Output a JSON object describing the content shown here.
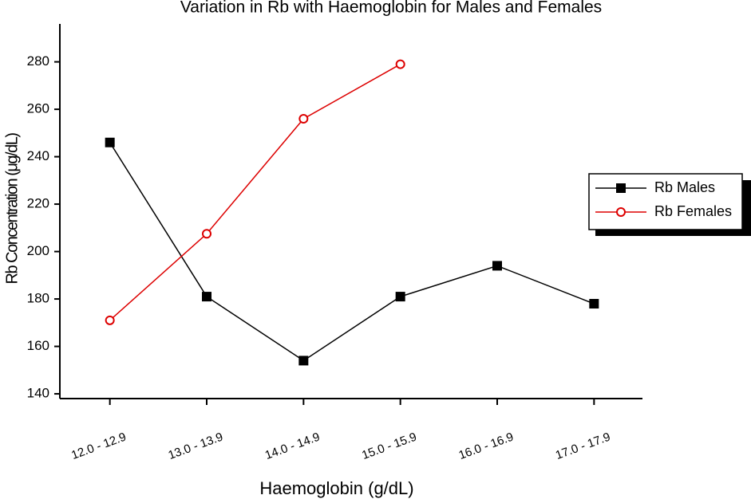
{
  "chart_data": {
    "type": "line",
    "title": "Variation in Rb with Haemoglobin for Males and Females",
    "x_label": "Haemoglobin (g/dL)",
    "y_label": "Rb Concentration (μg/dL)",
    "categories": [
      "12.0 - 12.9",
      "13.0 - 13.9",
      "14.0 - 14.9",
      "15.0 - 15.9",
      "16.0 - 16.9",
      "17.0 - 17.9"
    ],
    "series": [
      {
        "name": "Rb Males",
        "color": "#000000",
        "marker": "square",
        "values": [
          246,
          181,
          154,
          181,
          194,
          178
        ]
      },
      {
        "name": "Rb Females",
        "color": "#dd0000",
        "marker": "circle",
        "values": [
          171,
          207.5,
          256,
          279,
          null,
          null
        ]
      }
    ],
    "ylim": [
      138,
      296
    ],
    "yticks": [
      140,
      160,
      180,
      200,
      220,
      240,
      260,
      280
    ],
    "legend": "right"
  }
}
